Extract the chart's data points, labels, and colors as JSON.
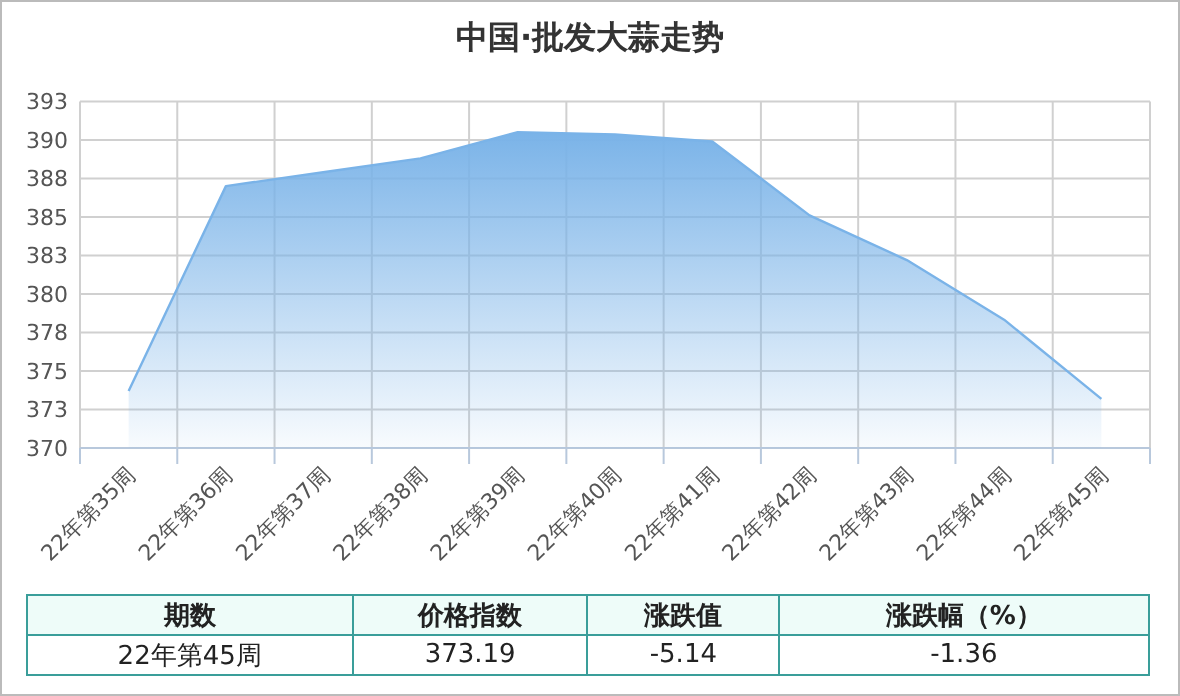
{
  "chart_data": {
    "type": "area",
    "title": "中国·批发大蒜走势",
    "categories": [
      "22年第35周",
      "22年第36周",
      "22年第37周",
      "22年第38周",
      "22年第39周",
      "22年第40周",
      "22年第41周",
      "22年第42周",
      "22年第43周",
      "22年第44周",
      "22年第45周"
    ],
    "values": [
      373.7,
      387.0,
      387.9,
      388.8,
      390.5,
      390.35,
      389.9,
      385.1,
      382.2,
      378.33,
      373.19
    ],
    "color": "#7ab3e8",
    "ylim": [
      370,
      392.5
    ],
    "yticks": [
      370,
      {
        "value": 372.5,
        "label": "373"
      },
      375,
      {
        "value": 377.5,
        "label": "378"
      },
      380,
      {
        "value": 382.5,
        "label": "383"
      },
      385,
      {
        "value": 387.5,
        "label": "388"
      },
      390,
      {
        "value": 392.5,
        "label": "393"
      }
    ],
    "grid": true,
    "annotations": [
      "期数",
      "价格指数",
      "涨跌值",
      "涨跌幅（%）",
      "22年第45周",
      "373.19",
      "-5.14",
      "-1.36"
    ]
  }
}
